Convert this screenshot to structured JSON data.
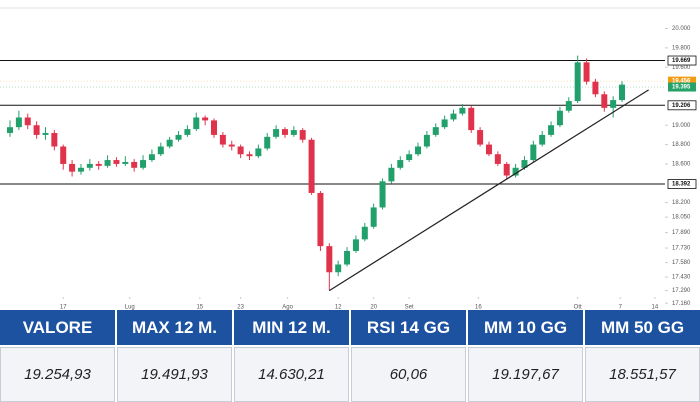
{
  "chart_data": {
    "type": "candlestick",
    "ylim": [
      17100,
      20150
    ],
    "yticks": [
      {
        "value": 20000,
        "label": "20.000"
      },
      {
        "value": 19800,
        "label": "19.800"
      },
      {
        "value": 19600,
        "label": "19.600"
      },
      {
        "value": 19000,
        "label": "19.000"
      },
      {
        "value": 18800,
        "label": "18.800"
      },
      {
        "value": 18600,
        "label": "18.600"
      },
      {
        "value": 18200,
        "label": "18.200"
      },
      {
        "value": 18050,
        "label": "18.050"
      },
      {
        "value": 17890,
        "label": "17.890"
      },
      {
        "value": 17730,
        "label": "17.730"
      },
      {
        "value": 17580,
        "label": "17.580"
      },
      {
        "value": 17430,
        "label": "17.430"
      },
      {
        "value": 17290,
        "label": "17.290"
      },
      {
        "value": 17160,
        "label": "17.160"
      }
    ],
    "xticks": [
      {
        "value": 6,
        "label": "17"
      },
      {
        "value": 13.5,
        "label": "Lug"
      },
      {
        "value": 21.4,
        "label": "15"
      },
      {
        "value": 26,
        "label": "23"
      },
      {
        "value": 31.3,
        "label": "Ago"
      },
      {
        "value": 37,
        "label": "12"
      },
      {
        "value": 41,
        "label": "20"
      },
      {
        "value": 45,
        "label": "Set"
      },
      {
        "value": 52.8,
        "label": "16"
      },
      {
        "value": 64,
        "label": "Ott"
      },
      {
        "value": 68.8,
        "label": "7"
      },
      {
        "value": 72.7,
        "label": "14"
      }
    ],
    "up_color": "#22a06b",
    "down_color": "#e0334b",
    "ohlc": [
      [
        18920,
        19050,
        18880,
        18980
      ],
      [
        18980,
        19150,
        18950,
        19080
      ],
      [
        19080,
        19120,
        18960,
        19000
      ],
      [
        19000,
        19040,
        18860,
        18900
      ],
      [
        18900,
        18980,
        18850,
        18920
      ],
      [
        18920,
        18950,
        18740,
        18780
      ],
      [
        18780,
        18800,
        18540,
        18600
      ],
      [
        18600,
        18640,
        18470,
        18520
      ],
      [
        18520,
        18600,
        18490,
        18560
      ],
      [
        18560,
        18650,
        18530,
        18600
      ],
      [
        18600,
        18630,
        18540,
        18580
      ],
      [
        18580,
        18690,
        18560,
        18640
      ],
      [
        18640,
        18670,
        18570,
        18600
      ],
      [
        18600,
        18680,
        18580,
        18620
      ],
      [
        18620,
        18650,
        18520,
        18560
      ],
      [
        18560,
        18690,
        18540,
        18640
      ],
      [
        18640,
        18750,
        18620,
        18700
      ],
      [
        18700,
        18820,
        18680,
        18780
      ],
      [
        18780,
        18880,
        18760,
        18850
      ],
      [
        18850,
        18940,
        18830,
        18900
      ],
      [
        18900,
        19000,
        18880,
        18960
      ],
      [
        18960,
        19130,
        18940,
        19080
      ],
      [
        19080,
        19100,
        19000,
        19050
      ],
      [
        19050,
        19070,
        18870,
        18900
      ],
      [
        18900,
        18930,
        18770,
        18800
      ],
      [
        18800,
        18840,
        18740,
        18780
      ],
      [
        18780,
        18800,
        18660,
        18700
      ],
      [
        18700,
        18730,
        18640,
        18680
      ],
      [
        18680,
        18800,
        18660,
        18760
      ],
      [
        18760,
        18920,
        18740,
        18880
      ],
      [
        18880,
        19000,
        18860,
        18960
      ],
      [
        18960,
        18980,
        18870,
        18900
      ],
      [
        18900,
        18990,
        18880,
        18950
      ],
      [
        18950,
        18970,
        18820,
        18850
      ],
      [
        18850,
        18870,
        18280,
        18300
      ],
      [
        18300,
        18320,
        17700,
        17750
      ],
      [
        17750,
        17780,
        17290,
        17480
      ],
      [
        17480,
        17600,
        17440,
        17560
      ],
      [
        17560,
        17740,
        17540,
        17700
      ],
      [
        17700,
        17860,
        17680,
        17820
      ],
      [
        17820,
        17990,
        17800,
        17950
      ],
      [
        17950,
        18190,
        17930,
        18150
      ],
      [
        18150,
        18450,
        18130,
        18420
      ],
      [
        18420,
        18600,
        18400,
        18560
      ],
      [
        18560,
        18680,
        18540,
        18640
      ],
      [
        18640,
        18740,
        18620,
        18700
      ],
      [
        18700,
        18820,
        18680,
        18780
      ],
      [
        18780,
        18940,
        18760,
        18900
      ],
      [
        18900,
        19020,
        18880,
        18980
      ],
      [
        18980,
        19100,
        18960,
        19060
      ],
      [
        19060,
        19160,
        19040,
        19120
      ],
      [
        19120,
        19220,
        19100,
        19180
      ],
      [
        19180,
        19200,
        18920,
        18950
      ],
      [
        18950,
        18980,
        18780,
        18800
      ],
      [
        18800,
        18830,
        18680,
        18700
      ],
      [
        18700,
        18730,
        18580,
        18600
      ],
      [
        18600,
        18620,
        18440,
        18480
      ],
      [
        18480,
        18600,
        18460,
        18560
      ],
      [
        18560,
        18680,
        18540,
        18640
      ],
      [
        18640,
        18840,
        18620,
        18800
      ],
      [
        18800,
        18940,
        18780,
        18900
      ],
      [
        18900,
        19040,
        18880,
        19000
      ],
      [
        19000,
        19190,
        18980,
        19150
      ],
      [
        19150,
        19290,
        19130,
        19250
      ],
      [
        19250,
        19720,
        19230,
        19650
      ],
      [
        19650,
        19690,
        19420,
        19450
      ],
      [
        19450,
        19480,
        19290,
        19320
      ],
      [
        19320,
        19350,
        19140,
        19180
      ],
      [
        19180,
        19300,
        19080,
        19260
      ],
      [
        19260,
        19456,
        19240,
        19420
      ]
    ],
    "levels": [
      {
        "value": 19669,
        "label": "19.669"
      },
      {
        "value": 19206,
        "label": "19.206"
      },
      {
        "value": 18392,
        "label": "18.392"
      }
    ],
    "markers": [
      {
        "value": 19456,
        "label": "19.456",
        "color": "#f39c12"
      },
      {
        "value": 19395,
        "label": "19.395",
        "color": "#26a269"
      }
    ],
    "trendline": [
      [
        36,
        17290
      ],
      [
        72,
        19366
      ]
    ]
  },
  "table": {
    "headers": [
      "VALORE",
      "MAX 12 M.",
      "MIN 12 M.",
      "RSI 14 GG",
      "MM 10 GG",
      "MM 50 GG"
    ],
    "rows": [
      [
        "19.254,93",
        "19.491,93",
        "14.630,21",
        "60,06",
        "19.197,67",
        "18.551,57"
      ]
    ]
  }
}
